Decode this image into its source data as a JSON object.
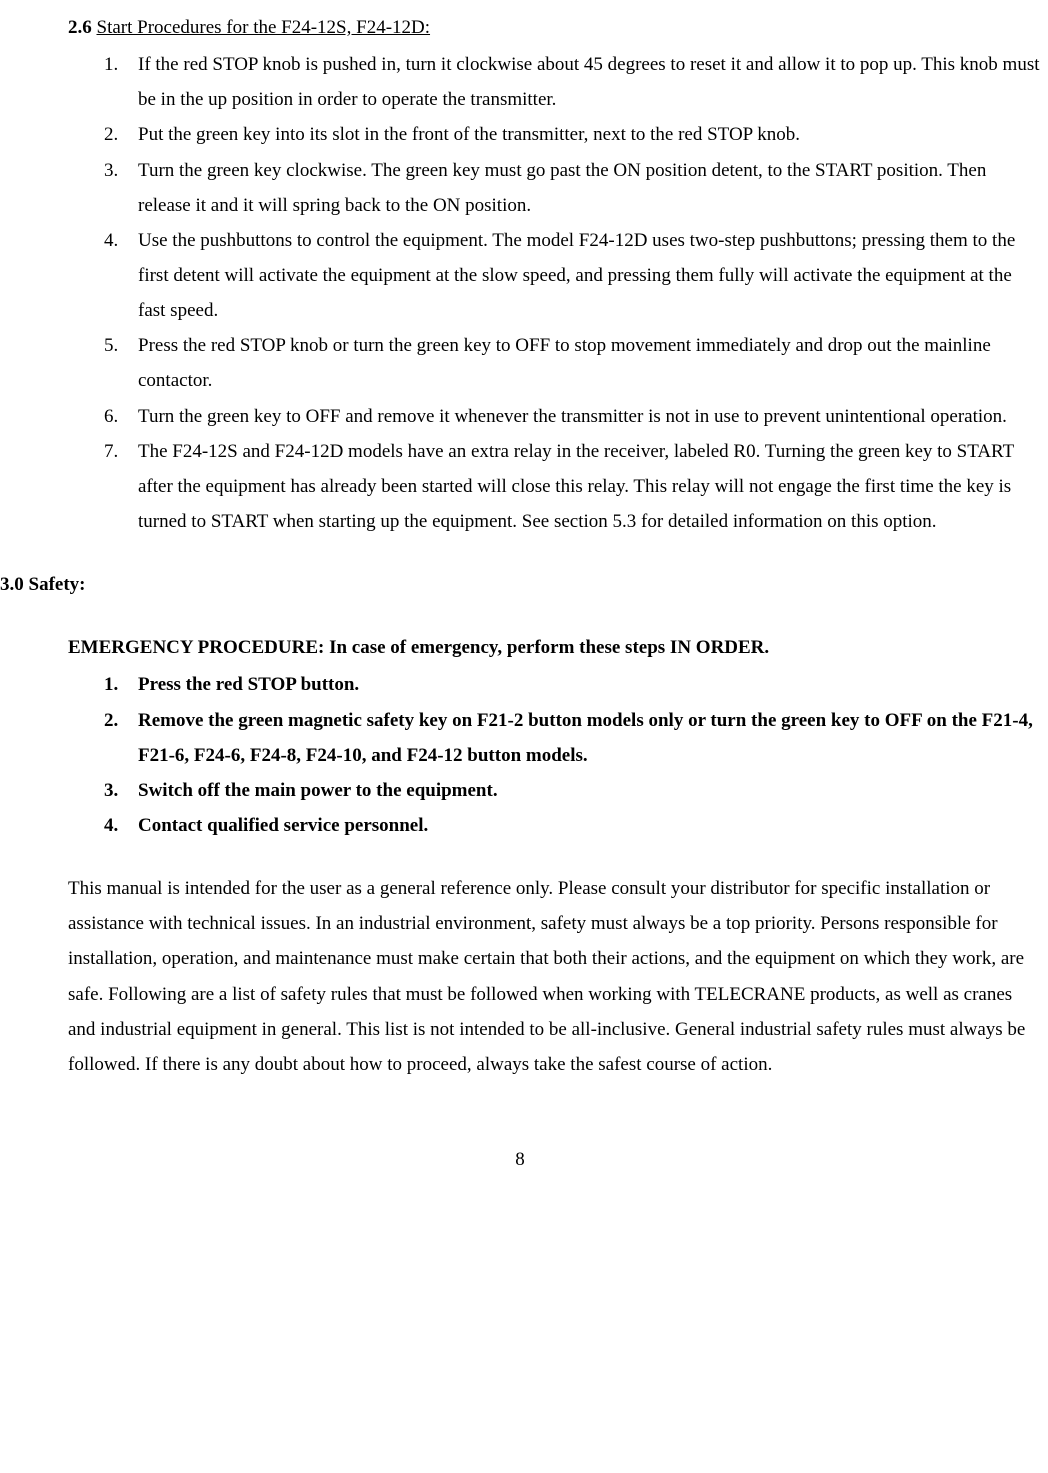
{
  "section26": {
    "number": "2.6",
    "title": "Start Procedures for the F24-12S, F24-12D:",
    "items": [
      "If the red STOP knob is pushed in, turn it clockwise about 45 degrees to reset it and allow it to pop up.  This knob must be in the up position in order to operate the transmitter.",
      "Put the green key into its slot in the front of the transmitter, next to the red STOP knob.",
      "Turn the green key clockwise.  The green key must go past the ON position detent, to the START position.  Then release it and it will spring back to the ON position.",
      "Use the pushbuttons to control the equipment.  The model F24-12D uses two-step pushbuttons; pressing them to the first detent will activate the equipment at the slow speed, and pressing them fully will activate the equipment at the fast speed.",
      "Press the red STOP knob or turn the green key to OFF to stop movement immediately and drop out the mainline contactor.",
      "Turn the green key to OFF and remove it whenever the transmitter is not in use to prevent unintentional operation.",
      "The F24-12S and F24-12D models have an extra relay in the receiver, labeled R0. Turning the green key to START after the equipment has already been started will close this relay.  This relay will not engage the first time the key is turned to START when starting up the equipment. See section 5.3 for detailed information on this option."
    ]
  },
  "safety": {
    "heading": "3.0 Safety:",
    "emergency_heading": "EMERGENCY PROCEDURE:  In case of emergency, perform these steps IN ORDER.",
    "steps": [
      "Press the red STOP button.",
      "Remove the green magnetic safety key on F21-2 button models only or turn the green key to OFF on the F21-4, F21-6, F24-6, F24-8, F24-10, and F24-12 button models.",
      "Switch off the main power to the equipment.",
      "Contact qualified service personnel."
    ],
    "paragraph": "This manual is intended for the user as a general reference only.  Please consult your distributor for specific installation or assistance with technical issues.  In an industrial environment, safety must always be a top priority.  Persons responsible for installation, operation, and maintenance must make certain that both their actions, and the equipment on which they work, are safe.  Following are a list of safety rules that must be followed when working with TELECRANE products, as well as cranes and industrial equipment in general.  This list is not intended to be all-inclusive.  General industrial safety rules must always be followed.  If there is any doubt about how to proceed, always take the safest course of action."
  },
  "page_number": "8"
}
